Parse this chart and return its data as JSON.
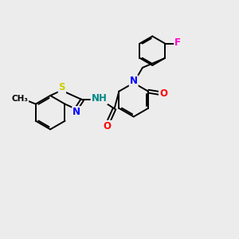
{
  "bg_color": "#ececec",
  "bond_color": "#000000",
  "bond_width": 1.4,
  "atom_colors": {
    "N": "#0000ff",
    "O": "#ff0000",
    "S": "#cccc00",
    "F": "#ff00cc",
    "NH": "#008888",
    "C": "#000000"
  },
  "font_size": 8.5,
  "fig_size": [
    3.0,
    3.0
  ],
  "dpi": 100
}
